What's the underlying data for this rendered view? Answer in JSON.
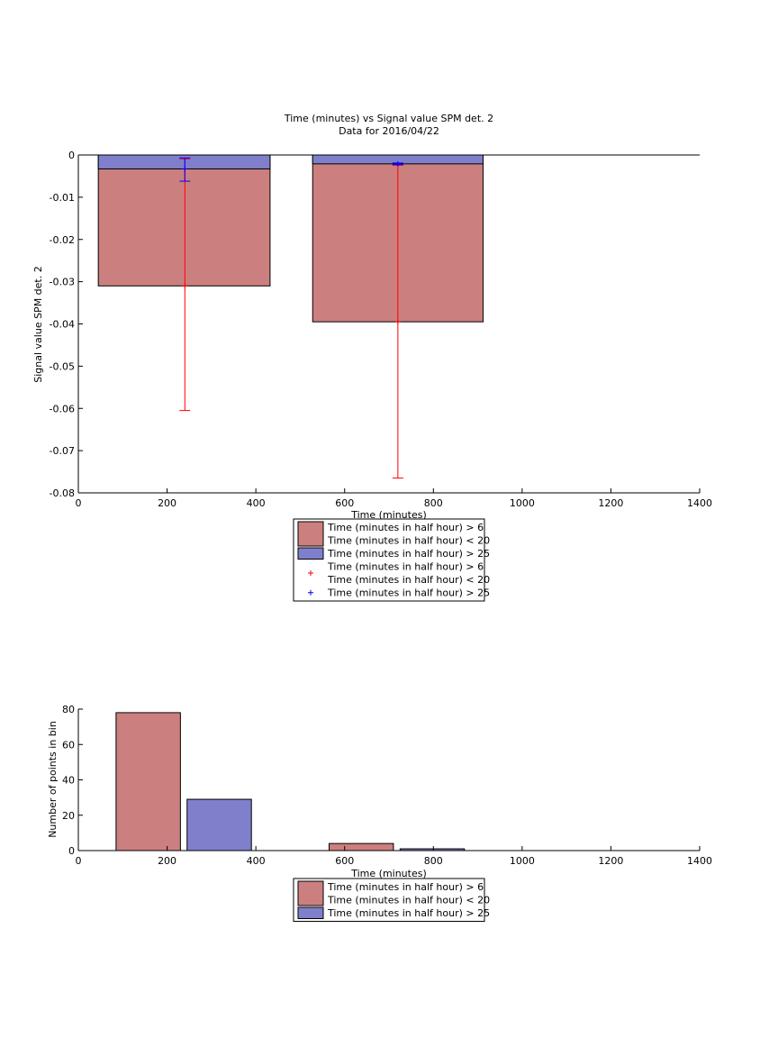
{
  "chart_data": [
    {
      "type": "bar",
      "title": "Time (minutes) vs Signal value SPM det. 2",
      "subtitle": "Data for 2016/04/22",
      "xlabel": "Time (minutes)",
      "ylabel": "Signal value SPM det. 2",
      "xlim": [
        0,
        1400
      ],
      "ylim": [
        -0.08,
        0
      ],
      "xticks": [
        "0",
        "200",
        "400",
        "600",
        "800",
        "1000",
        "1200",
        "1400"
      ],
      "yticks": [
        "0",
        "-0.01",
        "-0.02",
        "-0.03",
        "-0.04",
        "-0.05",
        "-0.06",
        "-0.07",
        "-0.08"
      ],
      "series": [
        {
          "name": "Time (minutes in half hour) > 6 Time (minutes in half hour) < 20",
          "color": "#cc7f7f",
          "bars": [
            {
              "x0": 45,
              "x1": 432,
              "value": -0.031
            },
            {
              "x0": 528,
              "x1": 912,
              "value": -0.0395
            }
          ]
        },
        {
          "name": "Time (minutes in half hour) > 25",
          "color": "#7f7fcc",
          "bars": [
            {
              "x0": 45,
              "x1": 432,
              "value": -0.0033
            },
            {
              "x0": 528,
              "x1": 912,
              "value": -0.0021
            }
          ]
        }
      ],
      "error_series": [
        {
          "name": "Time (minutes in half hour) > 6 Time (minutes in half hour) < 20",
          "color": "#ff0000",
          "points": [
            {
              "x": 240,
              "y": -0.031,
              "low": -0.0605,
              "high": -0.0009
            },
            {
              "x": 720,
              "y": -0.0395,
              "low": -0.0765,
              "high": -0.0024
            }
          ]
        },
        {
          "name": "Time (minutes in half hour) > 25",
          "color": "#0000ff",
          "points": [
            {
              "x": 240,
              "y": -0.0033,
              "low": -0.0062,
              "high": -0.0007
            },
            {
              "x": 720,
              "y": -0.0021,
              "low": -0.0023,
              "high": -0.0019
            }
          ]
        }
      ],
      "legend": {
        "placement": "below",
        "entries": [
          {
            "lines": [
              "Time (minutes in half hour) > 6",
              "Time (minutes in half hour) < 20"
            ],
            "kind": "patch",
            "color": "#cc7f7f"
          },
          {
            "lines": [
              "Time (minutes in half hour) > 25"
            ],
            "kind": "patch",
            "color": "#7f7fcc"
          },
          {
            "lines": [
              "Time (minutes in half hour) > 6",
              "Time (minutes in half hour) < 20"
            ],
            "kind": "marker",
            "color": "#ff0000"
          },
          {
            "lines": [
              "Time (minutes in half hour) > 25"
            ],
            "kind": "marker",
            "color": "#0000ff"
          }
        ]
      }
    },
    {
      "type": "bar",
      "title": "",
      "xlabel": "Time (minutes)",
      "ylabel": "Number of points in bin",
      "xlim": [
        0,
        1400
      ],
      "ylim": [
        0,
        80
      ],
      "xticks": [
        "0",
        "200",
        "400",
        "600",
        "800",
        "1000",
        "1200",
        "1400"
      ],
      "yticks": [
        "0",
        "20",
        "40",
        "60",
        "80"
      ],
      "series": [
        {
          "name": "Time (minutes in half hour) > 6 Time (minutes in half hour) < 20",
          "color": "#cc7f7f",
          "bars": [
            {
              "x0": 85,
              "x1": 230,
              "value": 78
            },
            {
              "x0": 565,
              "x1": 710,
              "value": 4
            }
          ]
        },
        {
          "name": "Time (minutes in half hour) > 25",
          "color": "#7f7fcc",
          "bars": [
            {
              "x0": 245,
              "x1": 390,
              "value": 29
            },
            {
              "x0": 725,
              "x1": 870,
              "value": 1
            }
          ]
        }
      ],
      "legend": {
        "placement": "below",
        "entries": [
          {
            "lines": [
              "Time (minutes in half hour) > 6",
              "Time (minutes in half hour) < 20"
            ],
            "kind": "patch",
            "color": "#cc7f7f"
          },
          {
            "lines": [
              "Time (minutes in half hour) > 25"
            ],
            "kind": "patch",
            "color": "#7f7fcc"
          }
        ]
      }
    }
  ]
}
